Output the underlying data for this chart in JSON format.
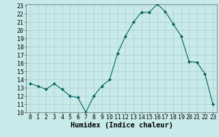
{
  "x": [
    0,
    1,
    2,
    3,
    4,
    5,
    6,
    7,
    8,
    9,
    10,
    11,
    12,
    13,
    14,
    15,
    16,
    17,
    18,
    19,
    20,
    21,
    22,
    23
  ],
  "y": [
    13.5,
    13.2,
    12.8,
    13.5,
    12.8,
    12.0,
    11.8,
    10.0,
    12.0,
    13.2,
    14.0,
    17.2,
    19.3,
    21.0,
    22.2,
    22.2,
    23.2,
    22.3,
    20.8,
    19.3,
    16.2,
    16.1,
    14.7,
    11.0
  ],
  "line_color": "#006060",
  "marker": "D",
  "marker_size": 2,
  "bg_color": "#c8eaea",
  "grid_color": "#aacccc",
  "xlabel": "Humidex (Indice chaleur)",
  "ylim": [
    10,
    23
  ],
  "xlim": [
    -0.5,
    23.5
  ],
  "yticks": [
    10,
    11,
    12,
    13,
    14,
    15,
    16,
    17,
    18,
    19,
    20,
    21,
    22,
    23
  ],
  "xticks": [
    0,
    1,
    2,
    3,
    4,
    5,
    6,
    7,
    8,
    9,
    10,
    11,
    12,
    13,
    14,
    15,
    16,
    17,
    18,
    19,
    20,
    21,
    22,
    23
  ],
  "tick_labelsize": 6,
  "xlabel_fontsize": 7.5
}
